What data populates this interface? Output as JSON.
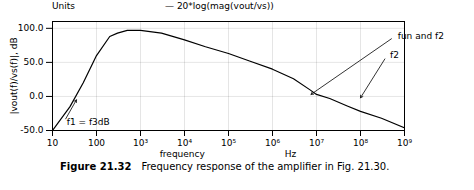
{
  "chart_data": {
    "type": "line",
    "title": "Units",
    "xlabel": [
      "frequency",
      "Hz"
    ],
    "ylabel": "|vout(f)/vs(f)|, dB",
    "x": [
      10,
      25,
      50,
      100,
      200,
      300,
      500,
      1000,
      3000,
      10000,
      30000,
      100000,
      300000,
      1000000,
      3000000,
      7000000,
      10000000,
      20000000,
      50000000,
      100000000,
      300000000,
      1000000000
    ],
    "series": [
      {
        "name": "— 20*log(mag(vout/vs))",
        "color": "#000000",
        "values": [
          -50,
          -15,
          20,
          60,
          88,
          93,
          97,
          97,
          93,
          83,
          73,
          63,
          52,
          40,
          26,
          10,
          3,
          -3,
          -14,
          -22,
          -32,
          -46
        ]
      }
    ],
    "log": "x",
    "xlim": [
      10,
      1000000000
    ],
    "ylim": [
      -50,
      110
    ],
    "xticks": [
      10,
      100,
      {
        "value": 1000,
        "label": "10³"
      },
      {
        "value": 10000,
        "label": "10⁴"
      },
      {
        "value": 100000,
        "label": "10⁵"
      },
      {
        "value": 1000000,
        "label": "10⁶"
      },
      {
        "value": 10000000,
        "label": "10⁷"
      },
      {
        "value": 100000000,
        "label": "10⁸"
      },
      {
        "value": 1000000000,
        "label": "10⁹"
      }
    ],
    "yticks": [
      {
        "value": -50,
        "label": "-50.0"
      },
      {
        "value": 0,
        "label": "0.0"
      },
      {
        "value": 50,
        "label": "50.0"
      },
      {
        "value": 100,
        "label": "100.0"
      }
    ],
    "grid": true,
    "legend": "top",
    "annotations": [
      {
        "text": "f1 = f3dB",
        "xy": [
          35,
          -5
        ],
        "xytext": [
          18,
          -38
        ]
      },
      {
        "text": "fun and f2",
        "xy": [
          7500000,
          3
        ],
        "xytext": [
          600000000,
          88
        ]
      },
      {
        "text": "f2",
        "xy": [
          100000000,
          -2
        ],
        "xytext": [
          400000000,
          60
        ]
      }
    ],
    "caption": [
      "Figure 21.32",
      "Frequency response of the amplifier in Fig. 21.30."
    ]
  }
}
